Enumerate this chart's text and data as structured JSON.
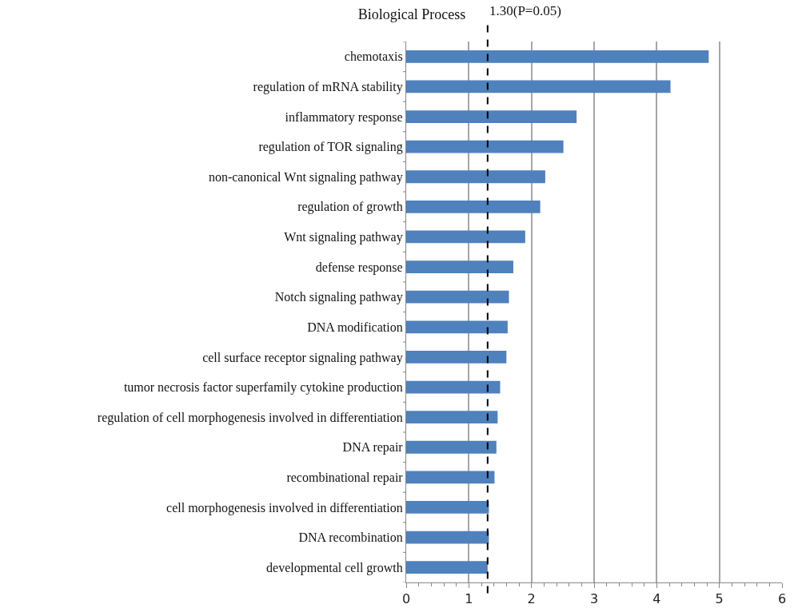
{
  "chart_data": {
    "type": "bar",
    "orientation": "horizontal",
    "title": "Biological Process",
    "categories": [
      "chemotaxis",
      "regulation of mRNA stability",
      "inflammatory response",
      "regulation of TOR signaling",
      "non-canonical Wnt signaling pathway",
      "regulation of growth",
      "Wnt signaling pathway",
      "defense response",
      "Notch signaling pathway",
      "DNA modification",
      "cell surface receptor signaling pathway",
      "tumor necrosis factor superfamily cytokine production",
      "regulation of cell morphogenesis involved in differentiation",
      "DNA repair",
      "recombinational repair",
      "cell morphogenesis involved in differentiation",
      "DNA recombination",
      "developmental cell growth"
    ],
    "values": [
      4.83,
      4.22,
      2.72,
      2.51,
      2.22,
      2.14,
      1.9,
      1.71,
      1.64,
      1.62,
      1.6,
      1.5,
      1.46,
      1.44,
      1.41,
      1.32,
      1.32,
      1.3
    ],
    "color": "#4f81bd",
    "xlim": [
      0,
      6
    ],
    "xticks": [
      0,
      {
        "value": 0.2,
        "label": null
      },
      {
        "value": 0.4,
        "label": null
      },
      {
        "value": 0.6,
        "label": null
      },
      {
        "value": 0.8,
        "label": null
      },
      1,
      {
        "value": 1.2,
        "label": null
      },
      {
        "value": 1.4,
        "label": null
      },
      {
        "value": 1.6,
        "label": null
      },
      {
        "value": 1.8,
        "label": null
      },
      2,
      {
        "value": 2.2,
        "label": null
      },
      {
        "value": 2.4,
        "label": null
      },
      {
        "value": 2.6,
        "label": null
      },
      {
        "value": 2.8,
        "label": null
      },
      3,
      {
        "value": 3.2,
        "label": null
      },
      {
        "value": 3.4,
        "label": null
      },
      {
        "value": 3.6,
        "label": null
      },
      {
        "value": 3.8,
        "label": null
      },
      4,
      {
        "value": 4.2,
        "label": null
      },
      {
        "value": 4.4,
        "label": null
      },
      {
        "value": 4.6,
        "label": null
      },
      {
        "value": 4.8,
        "label": null
      },
      5,
      {
        "value": 5.2,
        "label": null
      },
      {
        "value": 5.4,
        "label": null
      },
      {
        "value": 5.6,
        "label": null
      },
      {
        "value": 5.8,
        "label": null
      },
      6
    ],
    "grid": "x",
    "ref_lines": [
      {
        "axis": "x",
        "value": 1.3,
        "label": "1.30(P=0.05)",
        "color": "#000000",
        "line_style": "dashed"
      }
    ]
  }
}
